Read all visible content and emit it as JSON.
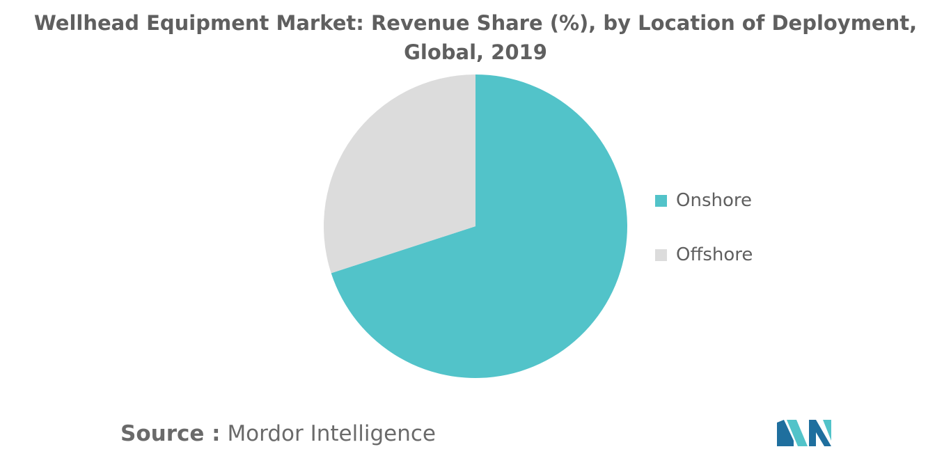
{
  "chart_data": {
    "type": "pie",
    "title": "Wellhead Equipment Market: Revenue Share (%), by Location of Deployment, Global, 2019",
    "categories": [
      "Onshore",
      "Offshore"
    ],
    "values": [
      70,
      30
    ],
    "colors": [
      "#52c3c9",
      "#dcdcdc"
    ],
    "legend_position": "right",
    "start_angle_deg": 0,
    "direction": "clockwise"
  },
  "legend": {
    "items": [
      {
        "label": "Onshore",
        "color": "#52c3c9"
      },
      {
        "label": "Offshore",
        "color": "#dcdcdc"
      }
    ]
  },
  "source": {
    "label": "Source :",
    "value": "Mordor Intelligence"
  },
  "logo": {
    "icon": "mordor-intelligence-logo-icon",
    "colors": [
      "#1f6f9e",
      "#52c3c9"
    ]
  }
}
